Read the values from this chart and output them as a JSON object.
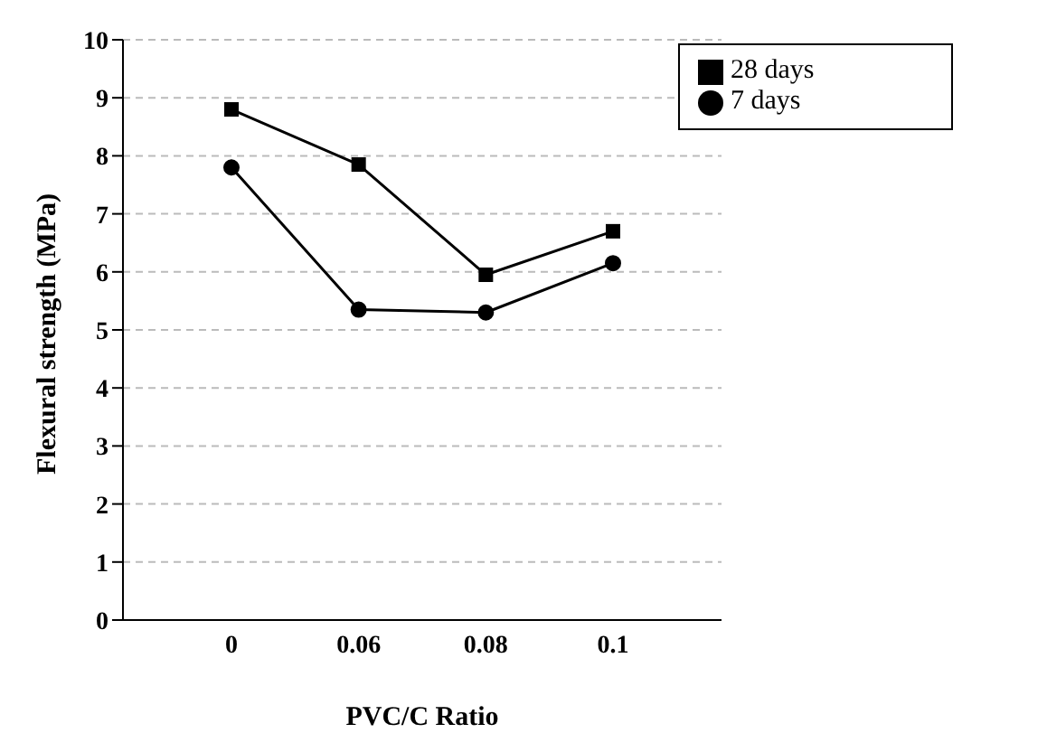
{
  "chart_data": {
    "type": "line",
    "xlabel": "PVC/C Ratio",
    "ylabel": "Flexural strength (MPa)",
    "categories": [
      "0",
      "0.06",
      "0.08",
      "0.1"
    ],
    "series": [
      {
        "name": "7 days",
        "color": "#000000",
        "marker": "circle",
        "values": [
          7.8,
          5.35,
          5.3,
          6.15
        ]
      },
      {
        "name": "28 days",
        "color": "#000000",
        "marker": "square",
        "values": [
          8.8,
          7.85,
          5.95,
          6.7
        ]
      }
    ],
    "ylim": [
      0,
      10
    ],
    "yticks": [
      0,
      1,
      2,
      3,
      4,
      5,
      6,
      7,
      8,
      9,
      10
    ],
    "grid": "y",
    "legend": "top right",
    "line_style": "solid"
  }
}
